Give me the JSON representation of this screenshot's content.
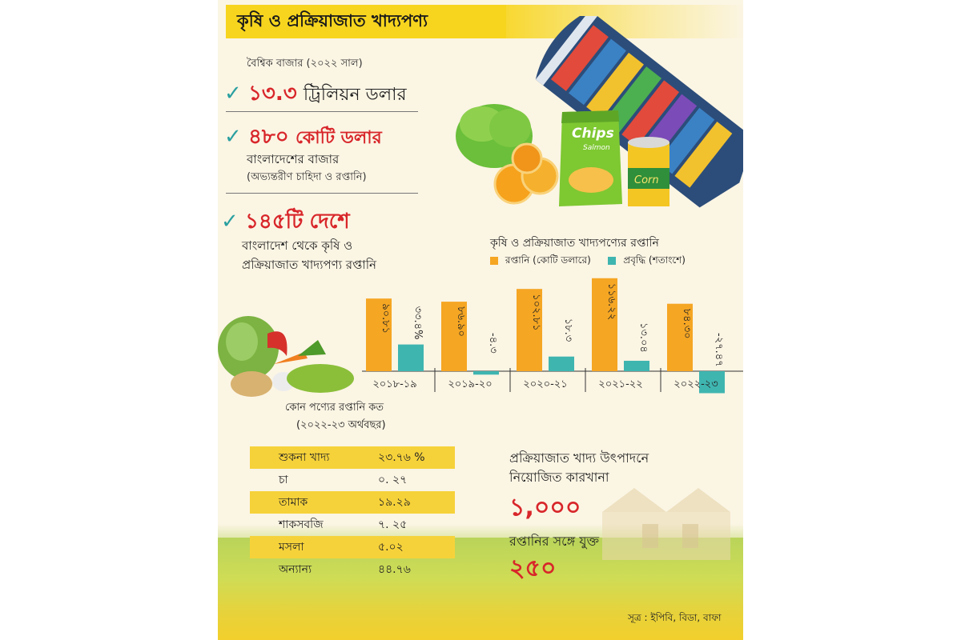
{
  "header": {
    "title": "কৃষি ও প্রক্রিয়াজাত খাদ্যপণ্য"
  },
  "stats": {
    "global_label": "বৈশ্বিক বাজার (২০২২ সাল)",
    "global_value": "১৩.৩",
    "global_unit": "ট্রিলিয়ন ডলার",
    "bd_value": "৪৮০",
    "bd_unit": "কোটি ডলার",
    "bd_label": "বাংলাদেশের বাজার",
    "bd_sub": "(অভ্যন্তরীণ চাহিদা ও রপ্তানি)",
    "countries_value": "১৪৫টি",
    "countries_unit": "দেশে",
    "countries_line1": "বাংলাদেশ থেকে কৃষি ও",
    "countries_line2": "প্রক্রিয়াজাত খাদ্যপণ্য রপ্তানি"
  },
  "image_labels": {
    "chips_brand": "Chips",
    "chips_sub": "Salmon",
    "can_label": "Corn"
  },
  "chart_data": {
    "type": "bar",
    "title": "কৃষি ও প্রক্রিয়াজাত খাদ্যপণ্যের রপ্তানি",
    "categories": [
      "২০১৮-১৯",
      "২০১৯-২০",
      "২০২০-২১",
      "২০২১-২২",
      "২০২২-২৩"
    ],
    "series": [
      {
        "name": "রপ্তানি (কোটি ডলারে)",
        "color": "#f5a623",
        "values": [
          90.81,
          86.9,
          102.81,
          116.22,
          84.3
        ],
        "labels": [
          "৯০.৮১",
          "৮৬.৯০",
          "১০২.৮১",
          "১১৬.২২",
          "৮৪.৩০"
        ]
      },
      {
        "name": "প্রবৃদ্ধি (শতাংশে)",
        "color": "#3fb5b0",
        "values": [
          33.4,
          -4.3,
          18.3,
          13.04,
          -27.47
        ],
        "labels": [
          "৩৩.৪%",
          "-৪.৩",
          "১৮.৩",
          "১৩.০৪",
          "-২৭.৪৭"
        ]
      }
    ],
    "ylim": [
      -30,
      120
    ],
    "grid": false,
    "legend": "top"
  },
  "products": {
    "title": "কোন পণ্যের রপ্তানি কত",
    "subtitle": "(২০২২-২৩ অর্থবছর)",
    "rows": [
      {
        "name": "শুকনা খাদ্য",
        "value": "২৩.৭৬ %"
      },
      {
        "name": "চা",
        "value": "০. ২৭"
      },
      {
        "name": "তামাক",
        "value": "১৯.২৯"
      },
      {
        "name": "শাকসবজি",
        "value": "৭. ২৫"
      },
      {
        "name": "মসলা",
        "value": "৫.০২"
      },
      {
        "name": "অন্যান্য",
        "value": "৪৪.৭৬"
      }
    ]
  },
  "factories": {
    "line1": "প্রক্রিয়াজাত খাদ্য উৎপাদনে",
    "line2": "নিয়োজিত কারখানা",
    "count": "১,০০০",
    "export_label": "রপ্তানির সঙ্গে যুক্ত",
    "export_count": "২৫০"
  },
  "source": "সূত্র : ইপিবি, বিডা, বাফা"
}
